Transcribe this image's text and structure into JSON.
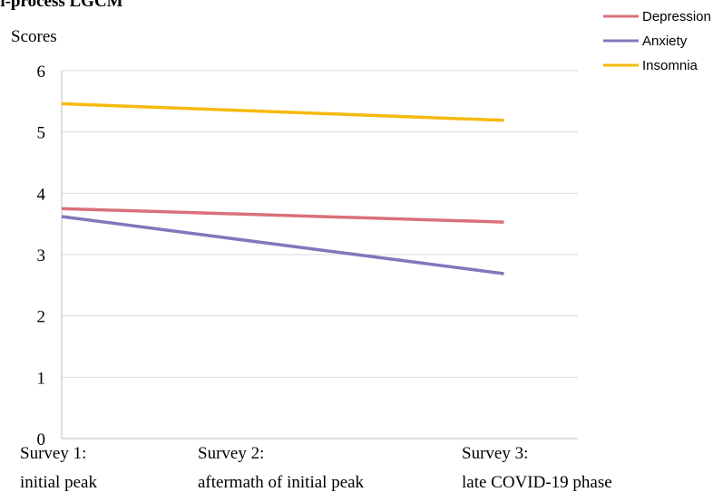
{
  "chart_data": {
    "type": "line",
    "title": "ti-process LGCM",
    "ylabel": "Scores",
    "ylim": [
      0,
      6
    ],
    "yticks": [
      0,
      1,
      2,
      3,
      4,
      5,
      6
    ],
    "grid": true,
    "legend_position": "top-right",
    "x": [
      1,
      2.7,
      4.9
    ],
    "categories": [
      {
        "line1": "Survey 1:",
        "line2": "initial peak"
      },
      {
        "line1": "Survey 2:",
        "line2": " aftermath of initial peak"
      },
      {
        "line1": "Survey 3:",
        "line2": "late COVID-19 phase"
      }
    ],
    "series": [
      {
        "name": "Depression",
        "color": "#D9707A",
        "points": [
          [
            1,
            3.75
          ],
          [
            4.9,
            3.53
          ]
        ]
      },
      {
        "name": "Anxiety",
        "color": "#8078BC",
        "points": [
          [
            1,
            3.62
          ],
          [
            4.9,
            2.69
          ]
        ]
      },
      {
        "name": "Insomnia",
        "color": "#F5BA0F",
        "points": [
          [
            1,
            5.46
          ],
          [
            4.9,
            5.19
          ]
        ]
      }
    ]
  }
}
